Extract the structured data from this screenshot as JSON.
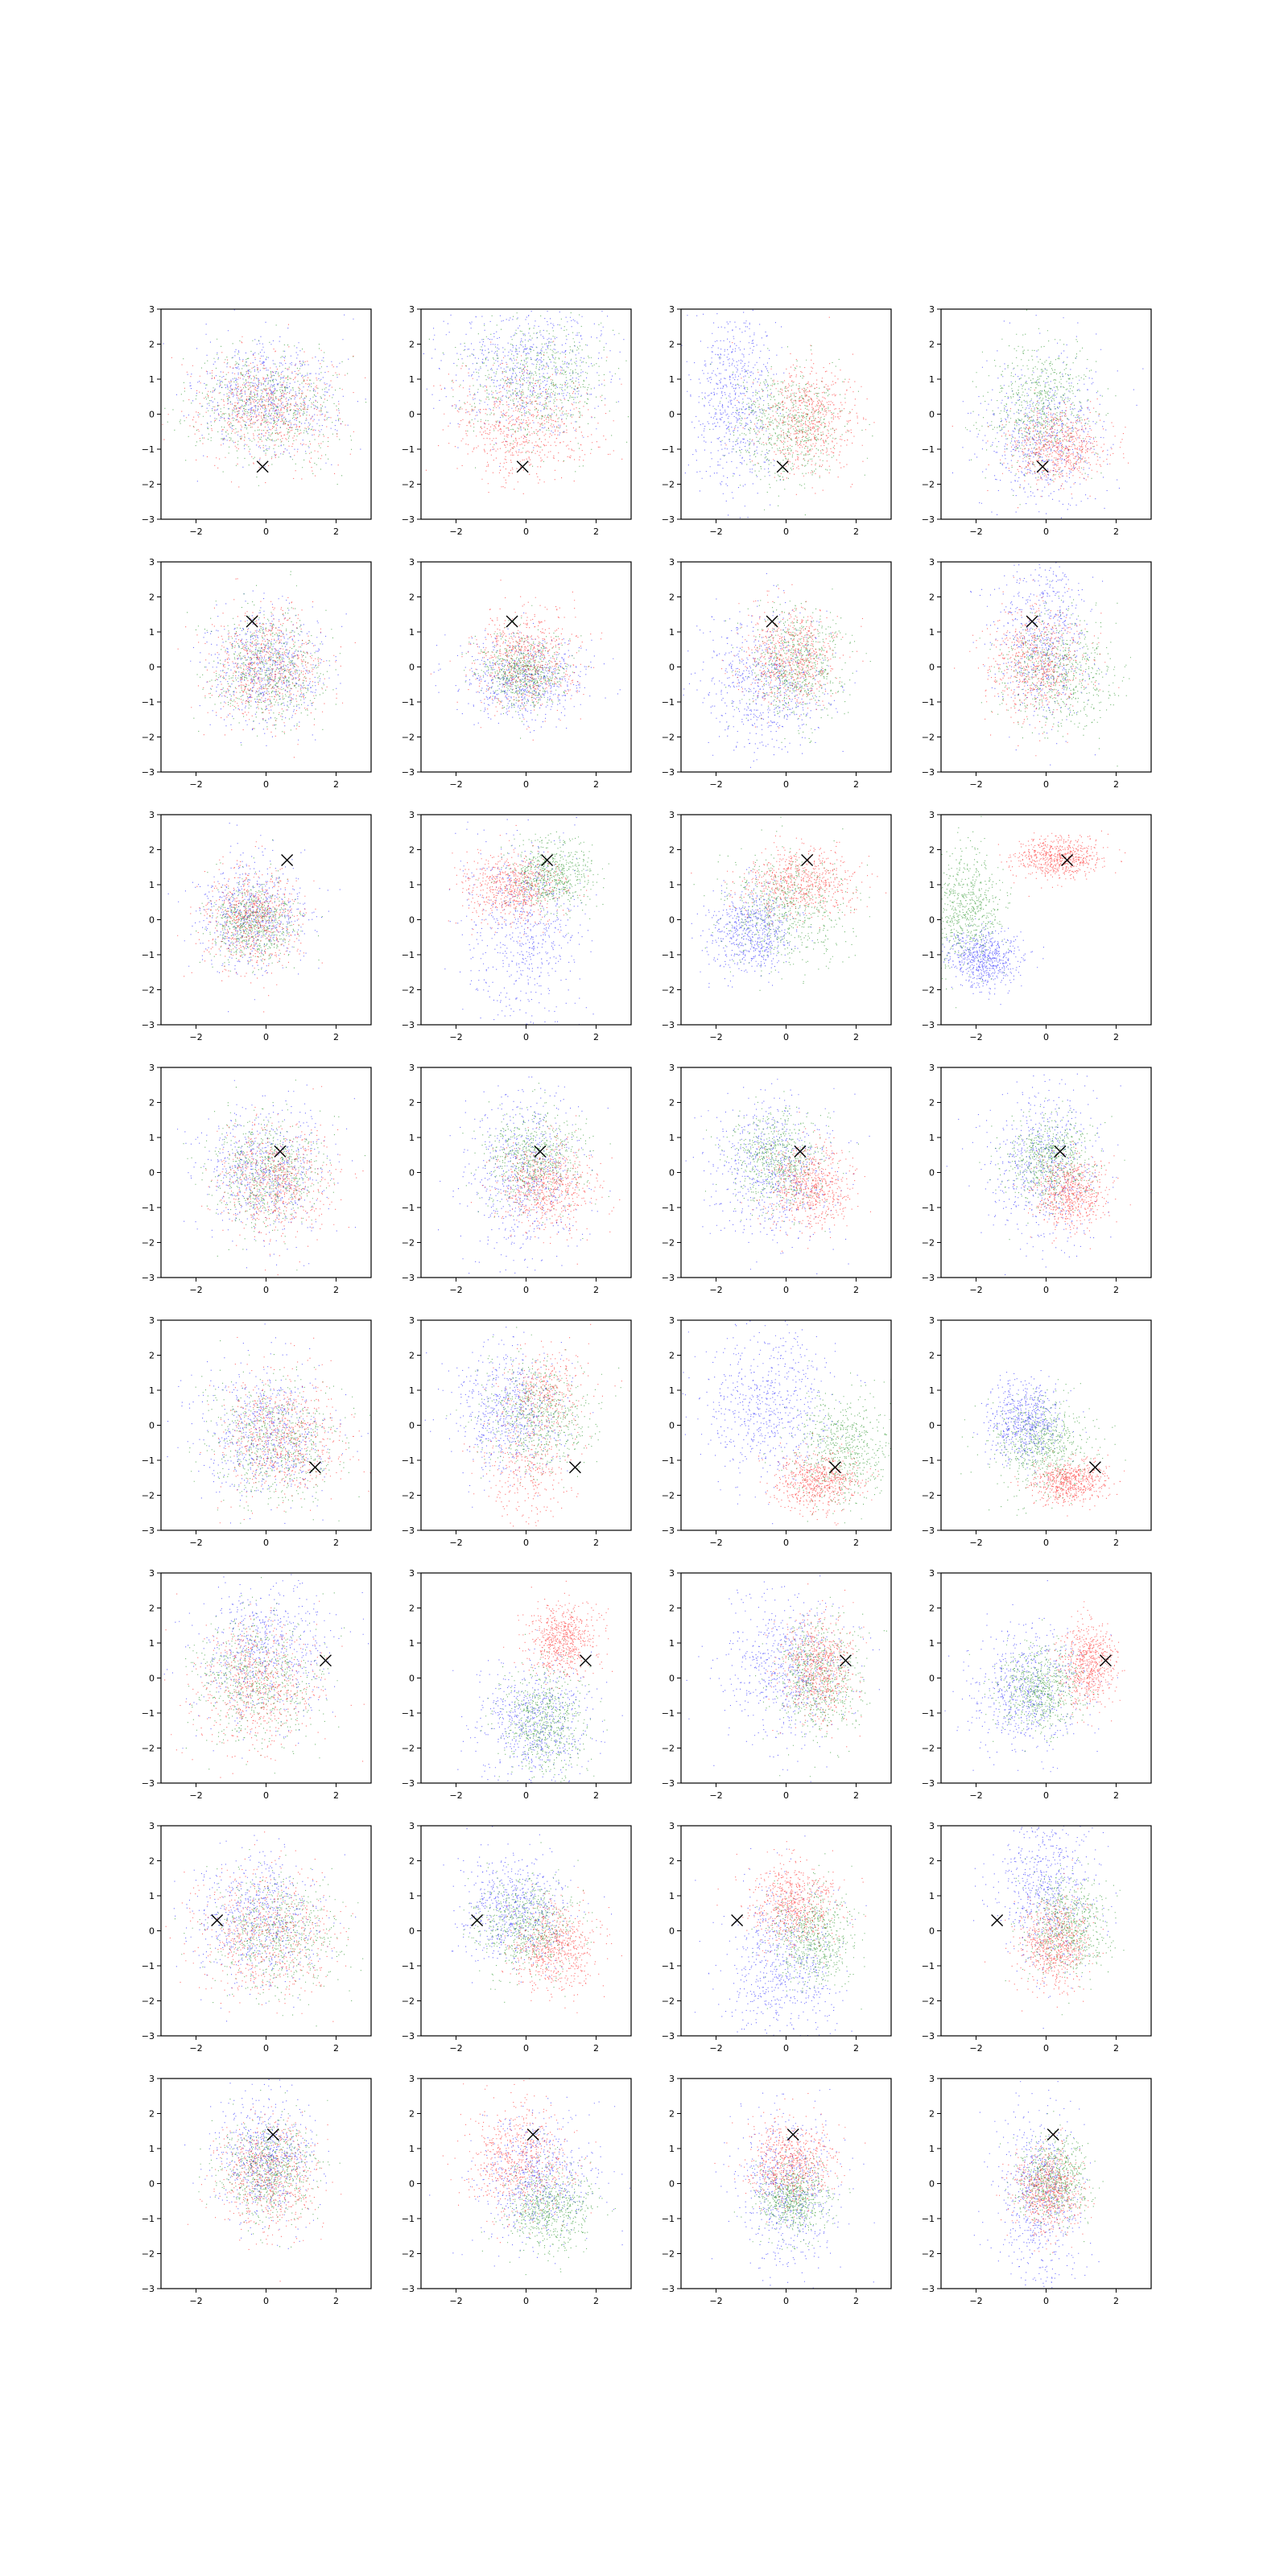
{
  "figure": {
    "rows": 8,
    "cols": 4,
    "background": "#ffffff"
  },
  "colors": {
    "blue": "#0000ff",
    "green": "#008000",
    "red": "#ff0000",
    "marker": "#000000",
    "axes": "#000000"
  },
  "chart_data": {
    "type": "scatter",
    "description_of_layout": "grid of 32 scatter subplots",
    "series_colors": [
      "blue",
      "green",
      "red"
    ],
    "marker_symbol": "x",
    "axis": {
      "xlim": [
        -3,
        3
      ],
      "ylim": [
        -3,
        3
      ],
      "xticks": [
        -2,
        0,
        2
      ],
      "yticks": [
        -3,
        -2,
        -1,
        0,
        1,
        2,
        3
      ],
      "xtick_labels": [
        "−2",
        "0",
        "2"
      ],
      "ytick_labels": [
        "−3",
        "−2",
        "−1",
        "0",
        "1",
        "2",
        "3"
      ],
      "grid": false
    },
    "row_markers": [
      [
        -0.1,
        -1.5
      ],
      [
        -0.4,
        1.3
      ],
      [
        0.6,
        1.7
      ],
      [
        0.4,
        0.6
      ],
      [
        1.4,
        -1.2
      ],
      [
        1.7,
        0.5
      ],
      [
        -1.4,
        0.3
      ],
      [
        0.2,
        1.4
      ]
    ],
    "panels": [
      [
        {
          "b": [
            [
              0.0,
              0.5,
              1.0,
              0.8
            ]
          ],
          "g": [
            [
              0.0,
              0.3,
              1.0,
              0.8
            ]
          ],
          "r": [
            [
              0.0,
              0.2,
              1.0,
              0.8
            ]
          ]
        },
        {
          "b": [
            [
              0.0,
              1.3,
              1.2,
              0.9
            ]
          ],
          "g": [
            [
              0.3,
              0.9,
              1.0,
              0.9
            ]
          ],
          "r": [
            [
              -0.1,
              -0.3,
              1.0,
              0.8
            ]
          ]
        },
        {
          "b": [
            [
              -1.5,
              0.5,
              0.6,
              1.4
            ]
          ],
          "g": [
            [
              0.0,
              -0.3,
              0.8,
              0.8
            ]
          ],
          "r": [
            [
              0.6,
              -0.1,
              0.7,
              0.8
            ]
          ]
        },
        {
          "b": [
            [
              -0.2,
              -0.6,
              0.9,
              1.1
            ]
          ],
          "g": [
            [
              -0.2,
              0.2,
              0.7,
              0.9
            ]
          ],
          "r": [
            [
              0.3,
              -0.9,
              0.7,
              0.5
            ]
          ]
        }
      ],
      [
        {
          "b": [
            [
              0.0,
              0.0,
              0.8,
              0.8
            ]
          ],
          "g": [
            [
              0.0,
              0.0,
              0.8,
              0.8
            ]
          ],
          "r": [
            [
              0.0,
              0.0,
              0.8,
              0.8
            ]
          ]
        },
        {
          "b": [
            [
              -0.1,
              -0.3,
              0.9,
              0.6
            ]
          ],
          "g": [
            [
              -0.1,
              -0.1,
              0.6,
              0.5
            ]
          ],
          "r": [
            [
              0.0,
              0.2,
              0.7,
              0.7
            ]
          ]
        },
        {
          "b": [
            [
              -0.6,
              -0.4,
              0.9,
              1.0
            ]
          ],
          "g": [
            [
              0.3,
              0.1,
              0.7,
              0.8
            ]
          ],
          "r": [
            [
              0.1,
              0.3,
              0.7,
              0.7
            ]
          ]
        },
        {
          "b": [
            [
              -0.1,
              0.9,
              0.7,
              1.2
            ]
          ],
          "g": [
            [
              0.4,
              -0.2,
              0.8,
              0.8
            ]
          ],
          "r": [
            [
              -0.3,
              0.1,
              0.7,
              0.8
            ]
          ]
        }
      ],
      [
        {
          "b": [
            [
              -0.4,
              0.2,
              0.8,
              0.8
            ]
          ],
          "g": [
            [
              -0.4,
              0.0,
              0.6,
              0.6
            ]
          ],
          "r": [
            [
              -0.4,
              0.0,
              0.7,
              0.7
            ]
          ]
        },
        {
          "b": [
            [
              -0.1,
              -0.2,
              0.8,
              1.3
            ]
          ],
          "g": [
            [
              0.7,
              1.3,
              0.6,
              0.5
            ]
          ],
          "r": [
            [
              -0.4,
              0.9,
              0.7,
              0.5
            ]
          ]
        },
        {
          "b": [
            [
              -1.0,
              -0.3,
              0.6,
              0.6
            ]
          ],
          "g": [
            [
              0.0,
              0.3,
              0.9,
              0.8
            ]
          ],
          "r": [
            [
              0.4,
              1.1,
              0.8,
              0.5
            ]
          ]
        },
        {
          "b": [
            [
              -1.8,
              -1.1,
              0.5,
              0.4
            ]
          ],
          "g": [
            [
              -2.3,
              0.3,
              0.5,
              0.8
            ]
          ],
          "r": [
            [
              0.3,
              1.8,
              0.6,
              0.3
            ]
          ]
        }
      ],
      [
        {
          "b": [
            [
              0.0,
              0.0,
              0.9,
              0.9
            ]
          ],
          "g": [
            [
              0.0,
              0.0,
              0.8,
              0.8
            ]
          ],
          "r": [
            [
              0.2,
              -0.2,
              0.8,
              0.8
            ]
          ]
        },
        {
          "b": [
            [
              0.0,
              0.0,
              0.8,
              1.2
            ]
          ],
          "g": [
            [
              0.2,
              0.4,
              0.7,
              0.7
            ]
          ],
          "r": [
            [
              0.6,
              -0.4,
              0.7,
              0.6
            ]
          ]
        },
        {
          "b": [
            [
              -0.4,
              0.1,
              0.9,
              1.0
            ]
          ],
          "g": [
            [
              -0.3,
              0.4,
              0.7,
              0.7
            ]
          ],
          "r": [
            [
              0.7,
              -0.4,
              0.6,
              0.6
            ]
          ]
        },
        {
          "b": [
            [
              -0.1,
              0.3,
              0.8,
              1.1
            ]
          ],
          "g": [
            [
              0.1,
              0.4,
              0.6,
              0.6
            ]
          ],
          "r": [
            [
              0.7,
              -0.6,
              0.5,
              0.5
            ]
          ]
        }
      ],
      [
        {
          "b": [
            [
              0.0,
              -0.2,
              0.9,
              0.9
            ]
          ],
          "g": [
            [
              0.3,
              -0.5,
              0.9,
              0.9
            ]
          ],
          "r": [
            [
              0.5,
              -0.3,
              0.9,
              0.9
            ]
          ]
        },
        {
          "b": [
            [
              -0.5,
              0.4,
              0.8,
              0.9
            ]
          ],
          "g": [
            [
              0.3,
              0.3,
              0.8,
              0.8
            ]
          ],
          "r": [
            [
              0.6,
              1.0,
              0.6,
              0.6
            ],
            [
              0.0,
              -1.2,
              0.7,
              0.8
            ]
          ]
        },
        {
          "b": [
            [
              -0.5,
              0.6,
              0.9,
              1.1
            ]
          ],
          "g": [
            [
              1.6,
              -0.7,
              0.7,
              0.8
            ]
          ],
          "r": [
            [
              0.9,
              -1.6,
              0.6,
              0.4
            ]
          ]
        },
        {
          "b": [
            [
              -0.6,
              0.1,
              0.5,
              0.6
            ]
          ],
          "g": [
            [
              -0.1,
              -0.5,
              0.7,
              0.7
            ]
          ],
          "r": [
            [
              0.7,
              -1.6,
              0.5,
              0.3
            ]
          ]
        }
      ],
      [
        {
          "b": [
            [
              0.0,
              0.8,
              1.0,
              1.0
            ]
          ],
          "g": [
            [
              -0.3,
              0.0,
              0.9,
              0.9
            ]
          ],
          "r": [
            [
              -0.3,
              -0.2,
              0.9,
              0.9
            ]
          ]
        },
        {
          "b": [
            [
              0.2,
              -1.3,
              0.8,
              0.8
            ]
          ],
          "g": [
            [
              0.5,
              -1.2,
              0.6,
              0.8
            ]
          ],
          "r": [
            [
              1.0,
              1.1,
              0.5,
              0.5
            ]
          ]
        },
        {
          "b": [
            [
              0.0,
              0.4,
              0.9,
              1.0
            ]
          ],
          "g": [
            [
              0.9,
              0.0,
              0.6,
              0.8
            ]
          ],
          "r": [
            [
              0.9,
              0.3,
              0.5,
              0.7
            ]
          ]
        },
        {
          "b": [
            [
              -0.5,
              -0.3,
              0.8,
              0.9
            ]
          ],
          "g": [
            [
              -0.2,
              -0.3,
              0.6,
              0.6
            ]
          ],
          "r": [
            [
              1.2,
              0.4,
              0.4,
              0.6
            ]
          ]
        }
      ],
      [
        {
          "b": [
            [
              -0.3,
              0.3,
              0.9,
              0.9
            ]
          ],
          "g": [
            [
              0.3,
              -0.1,
              0.9,
              0.8
            ]
          ],
          "r": [
            [
              0.0,
              -0.1,
              1.0,
              0.9
            ]
          ]
        },
        {
          "b": [
            [
              -0.3,
              0.6,
              0.8,
              0.8
            ]
          ],
          "g": [
            [
              0.0,
              0.2,
              0.7,
              0.7
            ]
          ],
          "r": [
            [
              0.8,
              -0.5,
              0.6,
              0.6
            ]
          ]
        },
        {
          "b": [
            [
              -0.2,
              -1.0,
              0.8,
              1.1
            ]
          ],
          "g": [
            [
              0.8,
              -0.2,
              0.6,
              0.7
            ]
          ],
          "r": [
            [
              0.2,
              0.8,
              0.6,
              0.6
            ]
          ]
        },
        {
          "b": [
            [
              0.0,
              1.1,
              0.7,
              1.1
            ]
          ],
          "g": [
            [
              0.6,
              0.1,
              0.6,
              0.7
            ]
          ],
          "r": [
            [
              0.2,
              -0.4,
              0.5,
              0.6
            ]
          ]
        }
      ],
      [
        {
          "b": [
            [
              0.0,
              0.7,
              0.7,
              0.8
            ]
          ],
          "g": [
            [
              0.0,
              0.4,
              0.7,
              0.7
            ]
          ],
          "r": [
            [
              0.0,
              0.2,
              0.7,
              0.8
            ]
          ]
        },
        {
          "b": [
            [
              0.3,
              0.1,
              0.8,
              0.9
            ]
          ],
          "g": [
            [
              0.7,
              -0.7,
              0.6,
              0.6
            ]
          ],
          "r": [
            [
              -0.2,
              0.7,
              0.7,
              0.8
            ]
          ]
        },
        {
          "b": [
            [
              0.0,
              -0.2,
              0.7,
              1.1
            ]
          ],
          "g": [
            [
              0.2,
              -0.4,
              0.5,
              0.5
            ]
          ],
          "r": [
            [
              0.1,
              0.6,
              0.6,
              0.6
            ]
          ]
        },
        {
          "b": [
            [
              -0.2,
              -0.3,
              0.6,
              1.3
            ]
          ],
          "g": [
            [
              0.2,
              0.1,
              0.5,
              0.6
            ]
          ],
          "r": [
            [
              0.0,
              -0.2,
              0.5,
              0.6
            ]
          ]
        }
      ]
    ]
  }
}
